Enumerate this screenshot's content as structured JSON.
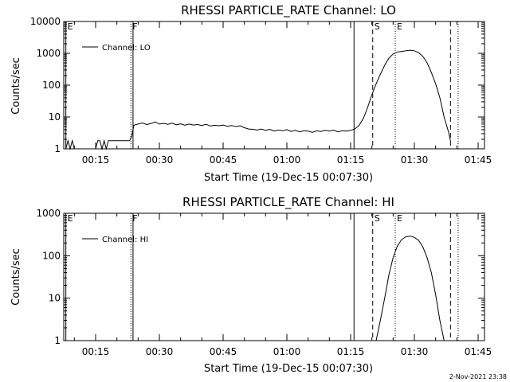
{
  "chart_data": [
    {
      "type": "line",
      "title": "RHESSI PARTICLE_RATE Channel: LO",
      "xlabel": "Start Time (19-Dec-15 00:07:30)",
      "ylabel": "Counts/sec",
      "xlim_minutes": [
        7.5,
        106.5
      ],
      "ylim": [
        1,
        10000
      ],
      "yscale": "log",
      "x_ticks": [
        {
          "minutes": 15,
          "label": "00:15"
        },
        {
          "minutes": 30,
          "label": "00:30"
        },
        {
          "minutes": 45,
          "label": "00:45"
        },
        {
          "minutes": 60,
          "label": "01:00"
        },
        {
          "minutes": 75,
          "label": "01:15"
        },
        {
          "minutes": 90,
          "label": "01:30"
        },
        {
          "minutes": 105,
          "label": "01:45"
        }
      ],
      "y_ticks": [
        {
          "value": 1,
          "label": "1"
        },
        {
          "value": 10,
          "label": "10"
        },
        {
          "value": 100,
          "label": "100"
        },
        {
          "value": 1000,
          "label": "1000"
        },
        {
          "value": 10000,
          "label": "10000"
        }
      ],
      "legend": "Channel: LO",
      "legend_position": "top-left",
      "markers": [
        {
          "minutes": 8.0,
          "label": "E",
          "style": "solid"
        },
        {
          "minutes": 23.3,
          "label": "F",
          "style": "dotted"
        },
        {
          "minutes": 23.8,
          "label": "",
          "style": "solid"
        },
        {
          "minutes": 75.8,
          "label": "",
          "style": "solid"
        },
        {
          "minutes": 80.2,
          "label": "S",
          "style": "dashed"
        },
        {
          "minutes": 85.5,
          "label": "E",
          "style": "dotted"
        },
        {
          "minutes": 98.5,
          "label": "",
          "style": "dashed"
        },
        {
          "minutes": 100.3,
          "label": "",
          "style": "dotted"
        }
      ],
      "series": [
        {
          "name": "Channel: LO",
          "x": [
            8,
            8.5,
            9,
            9.5,
            10,
            10.5,
            11,
            12,
            13,
            14,
            15,
            15.5,
            16,
            16.5,
            17,
            17.5,
            18,
            18.5,
            19,
            19.5,
            20,
            21,
            22,
            23,
            23.5,
            24,
            25,
            26,
            27,
            28,
            29,
            30,
            31,
            32,
            33,
            34,
            35,
            36,
            37,
            38,
            39,
            40,
            41,
            42,
            43,
            44,
            45,
            46,
            47,
            48,
            49,
            50,
            51,
            52,
            53,
            54,
            55,
            56,
            57,
            58,
            59,
            60,
            61,
            62,
            63,
            64,
            65,
            66,
            67,
            68,
            69,
            70,
            71,
            72,
            73,
            74,
            75,
            76,
            77,
            78,
            79,
            80,
            81,
            82,
            83,
            84,
            85,
            86,
            87,
            88,
            89,
            90,
            91,
            92,
            93,
            94,
            95,
            96,
            97,
            98,
            98.5
          ],
          "y": [
            1,
            1.8,
            1,
            1.8,
            1,
            1,
            1,
            1,
            1,
            1,
            1,
            1.8,
            1.8,
            1,
            1.8,
            1,
            1.8,
            1.8,
            1.8,
            1.8,
            1.8,
            1.8,
            1.8,
            1.8,
            2.5,
            5.5,
            6,
            6.5,
            5.8,
            6.2,
            7,
            6,
            6.3,
            5.9,
            6.4,
            5.7,
            6.1,
            5.5,
            6,
            5.6,
            5.8,
            5.4,
            5.9,
            5.2,
            5.5,
            5.3,
            5.6,
            5.1,
            5.4,
            5,
            5.3,
            4.6,
            4.2,
            4.1,
            3.9,
            4.2,
            3.8,
            4.1,
            3.6,
            3.9,
            3.7,
            4,
            3.5,
            3.8,
            3.4,
            3.7,
            3.6,
            3.3,
            3.7,
            3.5,
            3.8,
            3.6,
            3.9,
            3.4,
            3.7,
            3.6,
            3.8,
            4.2,
            5.5,
            9,
            20,
            50,
            110,
            220,
            420,
            700,
            950,
            1100,
            1150,
            1200,
            1250,
            1200,
            1050,
            800,
            500,
            250,
            110,
            40,
            10,
            3.5,
            1.8
          ]
        }
      ]
    },
    {
      "type": "line",
      "title": "RHESSI PARTICLE_RATE Channel: HI",
      "xlabel": "Start Time (19-Dec-15 00:07:30)",
      "ylabel": "Counts/sec",
      "xlim_minutes": [
        7.5,
        106.5
      ],
      "ylim": [
        1,
        1000
      ],
      "yscale": "log",
      "x_ticks": [
        {
          "minutes": 15,
          "label": "00:15"
        },
        {
          "minutes": 30,
          "label": "00:30"
        },
        {
          "minutes": 45,
          "label": "00:45"
        },
        {
          "minutes": 60,
          "label": "01:00"
        },
        {
          "minutes": 75,
          "label": "01:15"
        },
        {
          "minutes": 90,
          "label": "01:30"
        },
        {
          "minutes": 105,
          "label": "01:45"
        }
      ],
      "y_ticks": [
        {
          "value": 1,
          "label": "1"
        },
        {
          "value": 10,
          "label": "10"
        },
        {
          "value": 100,
          "label": "100"
        },
        {
          "value": 1000,
          "label": "1000"
        }
      ],
      "legend": "Channel: HI",
      "legend_position": "top-left",
      "markers": [
        {
          "minutes": 8.0,
          "label": "E",
          "style": "solid"
        },
        {
          "minutes": 23.3,
          "label": "F",
          "style": "dotted"
        },
        {
          "minutes": 23.8,
          "label": "",
          "style": "solid"
        },
        {
          "minutes": 75.8,
          "label": "",
          "style": "solid"
        },
        {
          "minutes": 80.2,
          "label": "S",
          "style": "dashed"
        },
        {
          "minutes": 85.5,
          "label": "E",
          "style": "dotted"
        },
        {
          "minutes": 98.5,
          "label": "",
          "style": "dashed"
        },
        {
          "minutes": 100.3,
          "label": "",
          "style": "dotted"
        }
      ],
      "series": [
        {
          "name": "Channel: HI",
          "x": [
            81,
            82,
            83,
            84,
            85,
            86,
            87,
            88,
            89,
            90,
            91,
            92,
            93,
            94,
            95,
            96,
            97
          ],
          "y": [
            1,
            3,
            10,
            35,
            90,
            170,
            240,
            280,
            290,
            270,
            230,
            160,
            90,
            40,
            12,
            3,
            1
          ]
        }
      ]
    }
  ],
  "footer": {
    "timestamp": "2-Nov-2021 23:38"
  }
}
